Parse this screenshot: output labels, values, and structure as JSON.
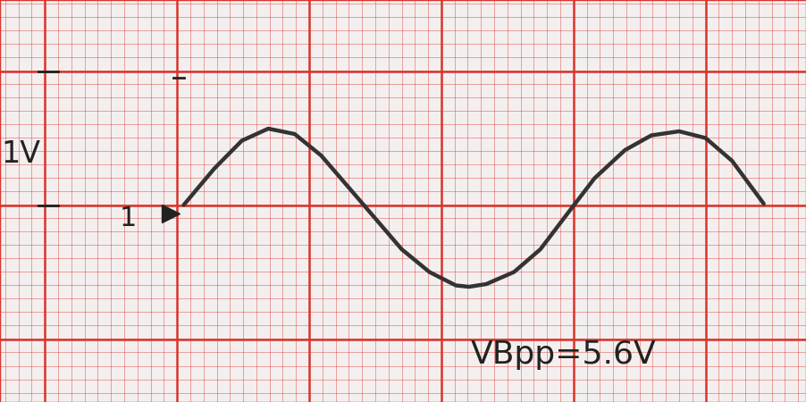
{
  "chart_data": {
    "type": "line",
    "x": [
      1.05,
      1.28,
      1.49,
      1.69,
      1.89,
      2.09,
      2.3,
      2.5,
      2.7,
      2.91,
      3.11,
      3.21,
      3.34,
      3.55,
      3.75,
      3.95,
      4.16,
      4.39,
      4.59,
      4.8,
      5.0,
      5.2,
      5.44
    ],
    "values": [
      0,
      0.27,
      0.48,
      0.57,
      0.53,
      0.37,
      0.13,
      -0.1,
      -0.33,
      -0.5,
      -0.6,
      -0.61,
      -0.59,
      -0.5,
      -0.33,
      -0.07,
      0.2,
      0.41,
      0.52,
      0.55,
      0.5,
      0.33,
      0.01
    ],
    "color": "#333333",
    "xlim": [
      -0.34,
      5.76
    ],
    "ylim": [
      -1.47,
      1.53
    ],
    "xticks": [
      0,
      1,
      2,
      3,
      4,
      5
    ],
    "yticks": [
      -1,
      0,
      1
    ],
    "grid": true,
    "tick_labels": false,
    "annotations": [
      "1V",
      "1",
      "VBpp=5.6V"
    ]
  }
}
